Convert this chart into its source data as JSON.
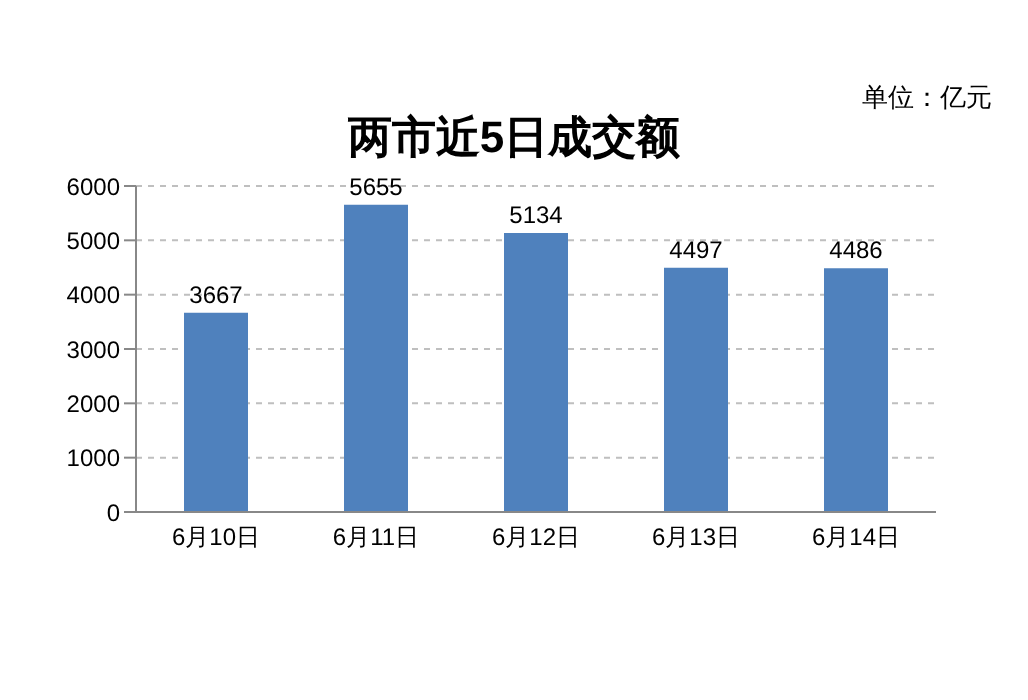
{
  "chart_data": {
    "type": "bar",
    "title": "两市近5日成交额",
    "annotations": [
      "单位：亿元"
    ],
    "categories": [
      "6月10日",
      "6月11日",
      "6月12日",
      "6月13日",
      "6月14日"
    ],
    "values": [
      3667,
      5655,
      5134,
      4497,
      4486
    ],
    "color": "#4f81bd",
    "ylim": [
      0,
      6000
    ],
    "yticks": [
      0,
      1000,
      2000,
      3000,
      4000,
      5000,
      6000
    ],
    "grid": "y",
    "data_labels": true
  }
}
